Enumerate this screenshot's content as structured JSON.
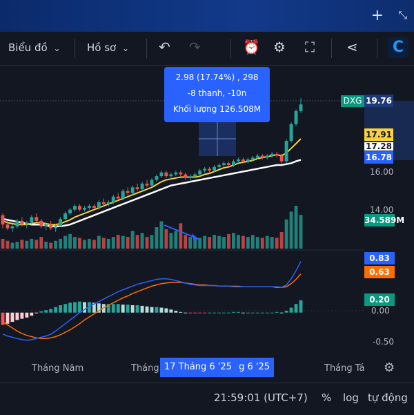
{
  "toolbar": {
    "chart_label": "Biểu đồ",
    "profile_label": "Hồ sơ"
  },
  "icons": [
    "plus-icon",
    "swap-icon",
    "chevron-down-icon",
    "undo-icon",
    "redo-icon",
    "alert-icon",
    "gear-icon",
    "fullscreen-icon",
    "share-icon",
    "logo-icon",
    "settings-icon"
  ],
  "info": {
    "line1": "2.98 (17.74%) , 298",
    "line2": "-8 thanh, -10n",
    "line3": "Khối lượng 126.508M"
  },
  "price_labels": {
    "ticker": "DXG",
    "last": "19.76",
    "ma_fast": "17.91",
    "ma_mid": "17.28",
    "ma_slow": "16.78",
    "volume": "34.589M",
    "macd": "0.83",
    "signal": "0.63",
    "hist": "0.20"
  },
  "colors": {
    "up": "#26a69a",
    "down": "#ef5350",
    "ma_yellow": "#f7d23c",
    "ma_white": "#ffffff",
    "macd_line": "#2962ff",
    "signal_line": "#ff6d00",
    "accent": "#2962ff"
  },
  "chart_data": [
    {
      "type": "candlestick",
      "ticker": "DXG",
      "y_ticks": [
        "16.00",
        "14.00"
      ],
      "ylim": [
        12.6,
        20.4
      ],
      "ohlc": [
        [
          13.8,
          13.9,
          13.1,
          13.3
        ],
        [
          13.3,
          13.5,
          13.0,
          13.1
        ],
        [
          13.1,
          13.3,
          12.9,
          13.2
        ],
        [
          13.2,
          13.6,
          13.1,
          13.5
        ],
        [
          13.5,
          13.7,
          13.2,
          13.3
        ],
        [
          13.3,
          13.5,
          13.1,
          13.4
        ],
        [
          13.4,
          13.8,
          13.3,
          13.7
        ],
        [
          13.7,
          13.9,
          13.4,
          13.5
        ],
        [
          13.5,
          13.6,
          13.1,
          13.2
        ],
        [
          13.2,
          13.4,
          13.0,
          13.3
        ],
        [
          13.3,
          13.5,
          13.0,
          13.1
        ],
        [
          13.1,
          13.3,
          12.9,
          13.2
        ],
        [
          13.2,
          13.7,
          13.2,
          13.6
        ],
        [
          13.6,
          14.0,
          13.5,
          13.9
        ],
        [
          13.9,
          14.2,
          13.8,
          14.1
        ],
        [
          14.1,
          14.4,
          14.0,
          14.3
        ],
        [
          14.3,
          14.4,
          14.0,
          14.1
        ],
        [
          14.1,
          14.3,
          14.0,
          14.2
        ],
        [
          14.2,
          14.4,
          14.1,
          14.3
        ],
        [
          14.3,
          14.4,
          14.1,
          14.2
        ],
        [
          14.2,
          14.6,
          14.1,
          14.5
        ],
        [
          14.5,
          14.7,
          14.3,
          14.4
        ],
        [
          14.4,
          14.6,
          14.3,
          14.5
        ],
        [
          14.5,
          14.9,
          14.4,
          14.8
        ],
        [
          14.8,
          15.0,
          14.6,
          14.7
        ],
        [
          14.7,
          15.2,
          14.6,
          15.1
        ],
        [
          15.1,
          15.3,
          14.9,
          15.0
        ],
        [
          15.0,
          15.4,
          14.9,
          15.3
        ],
        [
          15.3,
          15.5,
          15.1,
          15.2
        ],
        [
          15.2,
          15.6,
          15.1,
          15.5
        ],
        [
          15.5,
          15.7,
          15.3,
          15.4
        ],
        [
          15.4,
          15.8,
          15.3,
          15.7
        ],
        [
          15.7,
          16.0,
          15.6,
          15.9
        ],
        [
          15.9,
          16.2,
          15.8,
          16.1
        ],
        [
          16.1,
          16.2,
          15.8,
          15.9
        ],
        [
          15.9,
          16.1,
          15.7,
          16.0
        ],
        [
          16.0,
          16.2,
          15.9,
          16.1
        ],
        [
          16.1,
          16.2,
          15.9,
          16.0
        ],
        [
          16.0,
          16.1,
          15.7,
          15.8
        ],
        [
          15.8,
          16.0,
          15.6,
          15.9
        ],
        [
          15.9,
          16.1,
          15.8,
          16.0
        ],
        [
          16.0,
          16.3,
          15.9,
          16.2
        ],
        [
          16.2,
          16.4,
          16.1,
          16.3
        ],
        [
          16.3,
          16.4,
          16.1,
          16.2
        ],
        [
          16.2,
          16.5,
          16.1,
          16.4
        ],
        [
          16.4,
          16.6,
          16.3,
          16.5
        ],
        [
          16.5,
          16.7,
          16.4,
          16.6
        ],
        [
          16.6,
          16.7,
          16.4,
          16.5
        ],
        [
          16.5,
          16.8,
          16.4,
          16.7
        ],
        [
          16.7,
          16.9,
          16.6,
          16.8
        ],
        [
          16.8,
          16.9,
          16.6,
          16.7
        ],
        [
          16.7,
          16.9,
          16.6,
          16.8
        ],
        [
          16.8,
          17.0,
          16.7,
          16.9
        ],
        [
          16.9,
          17.1,
          16.8,
          17.0
        ],
        [
          17.0,
          17.1,
          16.8,
          16.9
        ],
        [
          16.9,
          17.1,
          16.8,
          17.0
        ],
        [
          17.0,
          17.2,
          16.9,
          17.1
        ],
        [
          17.1,
          17.2,
          16.9,
          17.0
        ],
        [
          17.0,
          17.1,
          16.6,
          16.7
        ],
        [
          16.7,
          17.9,
          16.6,
          17.8
        ],
        [
          17.8,
          18.8,
          17.7,
          18.7
        ],
        [
          18.7,
          19.5,
          18.6,
          19.4
        ],
        [
          19.4,
          20.1,
          19.3,
          19.76
        ]
      ],
      "ma_fast": [
        13.5,
        13.4,
        13.35,
        13.3,
        13.3,
        13.3,
        13.35,
        13.4,
        13.4,
        13.35,
        13.3,
        13.3,
        13.35,
        13.45,
        13.55,
        13.7,
        13.8,
        13.9,
        14.0,
        14.1,
        14.2,
        14.3,
        14.4,
        14.5,
        14.6,
        14.7,
        14.8,
        14.9,
        15.0,
        15.1,
        15.2,
        15.3,
        15.45,
        15.6,
        15.7,
        15.75,
        15.8,
        15.85,
        15.85,
        15.85,
        15.85,
        15.9,
        16.0,
        16.05,
        16.15,
        16.25,
        16.35,
        16.4,
        16.5,
        16.6,
        16.65,
        16.7,
        16.75,
        16.85,
        16.9,
        16.95,
        17.0,
        17.05,
        17.0,
        17.15,
        17.4,
        17.65,
        17.91
      ],
      "ma_slow": [
        13.6,
        13.55,
        13.5,
        13.45,
        13.4,
        13.35,
        13.3,
        13.3,
        13.3,
        13.25,
        13.2,
        13.2,
        13.2,
        13.25,
        13.3,
        13.4,
        13.5,
        13.6,
        13.7,
        13.8,
        13.9,
        14.0,
        14.1,
        14.2,
        14.3,
        14.4,
        14.5,
        14.6,
        14.7,
        14.8,
        14.9,
        15.0,
        15.1,
        15.2,
        15.3,
        15.4,
        15.45,
        15.5,
        15.55,
        15.6,
        15.65,
        15.7,
        15.75,
        15.8,
        15.85,
        15.9,
        15.95,
        16.0,
        16.05,
        16.1,
        16.15,
        16.2,
        16.25,
        16.3,
        16.35,
        16.4,
        16.45,
        16.5,
        16.5,
        16.55,
        16.6,
        16.7,
        16.78
      ],
      "volume": [
        10,
        8,
        6,
        7,
        9,
        8,
        10,
        9,
        12,
        7,
        6,
        8,
        10,
        13,
        15,
        12,
        11,
        9,
        10,
        9,
        13,
        11,
        10,
        12,
        14,
        13,
        12,
        18,
        14,
        16,
        12,
        14,
        22,
        28,
        20,
        16,
        18,
        26,
        14,
        12,
        10,
        11,
        13,
        12,
        14,
        13,
        12,
        15,
        16,
        14,
        13,
        12,
        14,
        12,
        11,
        13,
        12,
        11,
        17,
        30,
        38,
        44,
        34.589
      ]
    },
    {
      "type": "line",
      "indicator": "MACD",
      "y_ticks": [
        "0.00",
        "-0.50"
      ],
      "ylim": [
        -0.62,
        0.95
      ],
      "macd": [
        -0.35,
        -0.38,
        -0.4,
        -0.42,
        -0.44,
        -0.45,
        -0.44,
        -0.42,
        -0.4,
        -0.38,
        -0.35,
        -0.3,
        -0.24,
        -0.18,
        -0.12,
        -0.06,
        0.0,
        0.05,
        0.1,
        0.14,
        0.18,
        0.22,
        0.26,
        0.3,
        0.34,
        0.37,
        0.4,
        0.43,
        0.46,
        0.48,
        0.5,
        0.52,
        0.54,
        0.55,
        0.55,
        0.54,
        0.52,
        0.5,
        0.48,
        0.46,
        0.45,
        0.44,
        0.44,
        0.44,
        0.44,
        0.43,
        0.43,
        0.43,
        0.43,
        0.43,
        0.42,
        0.42,
        0.42,
        0.42,
        0.42,
        0.42,
        0.42,
        0.42,
        0.41,
        0.45,
        0.55,
        0.68,
        0.83
      ],
      "signal": [
        -0.15,
        -0.2,
        -0.25,
        -0.3,
        -0.34,
        -0.37,
        -0.39,
        -0.41,
        -0.42,
        -0.42,
        -0.41,
        -0.39,
        -0.36,
        -0.32,
        -0.28,
        -0.23,
        -0.18,
        -0.12,
        -0.07,
        -0.02,
        0.03,
        0.08,
        0.12,
        0.16,
        0.2,
        0.24,
        0.27,
        0.31,
        0.34,
        0.37,
        0.4,
        0.43,
        0.45,
        0.47,
        0.48,
        0.49,
        0.49,
        0.49,
        0.48,
        0.47,
        0.46,
        0.45,
        0.45,
        0.44,
        0.44,
        0.43,
        0.43,
        0.43,
        0.42,
        0.42,
        0.42,
        0.42,
        0.42,
        0.42,
        0.42,
        0.42,
        0.42,
        0.41,
        0.41,
        0.42,
        0.47,
        0.54,
        0.63
      ],
      "histogram": [
        -0.2,
        -0.18,
        -0.15,
        -0.12,
        -0.1,
        -0.08,
        -0.05,
        -0.01,
        0.02,
        0.04,
        0.06,
        0.09,
        0.12,
        0.14,
        0.16,
        0.17,
        0.18,
        0.17,
        0.17,
        0.16,
        0.15,
        0.14,
        0.14,
        0.14,
        0.14,
        0.13,
        0.13,
        0.12,
        0.12,
        0.11,
        0.1,
        0.09,
        0.09,
        0.08,
        0.07,
        0.05,
        0.03,
        0.01,
        0.0,
        -0.01,
        -0.01,
        -0.01,
        -0.01,
        0.0,
        0.0,
        0.0,
        0.0,
        0.0,
        0.01,
        0.01,
        0.0,
        0.0,
        0.0,
        0.0,
        0.0,
        0.0,
        0.0,
        0.01,
        0.0,
        0.03,
        0.08,
        0.14,
        0.2
      ]
    }
  ],
  "x_axis": {
    "label_1": "Tháng Năm",
    "label_2": "Tháng",
    "highlight": "17 Tháng 6 '25",
    "highlight_tail": "g 6 '25",
    "label_3": "Tháng Tá"
  },
  "bottom": {
    "time": "21:59:01 (UTC+7)",
    "percent": "%",
    "log": "log",
    "auto": "tự động"
  }
}
